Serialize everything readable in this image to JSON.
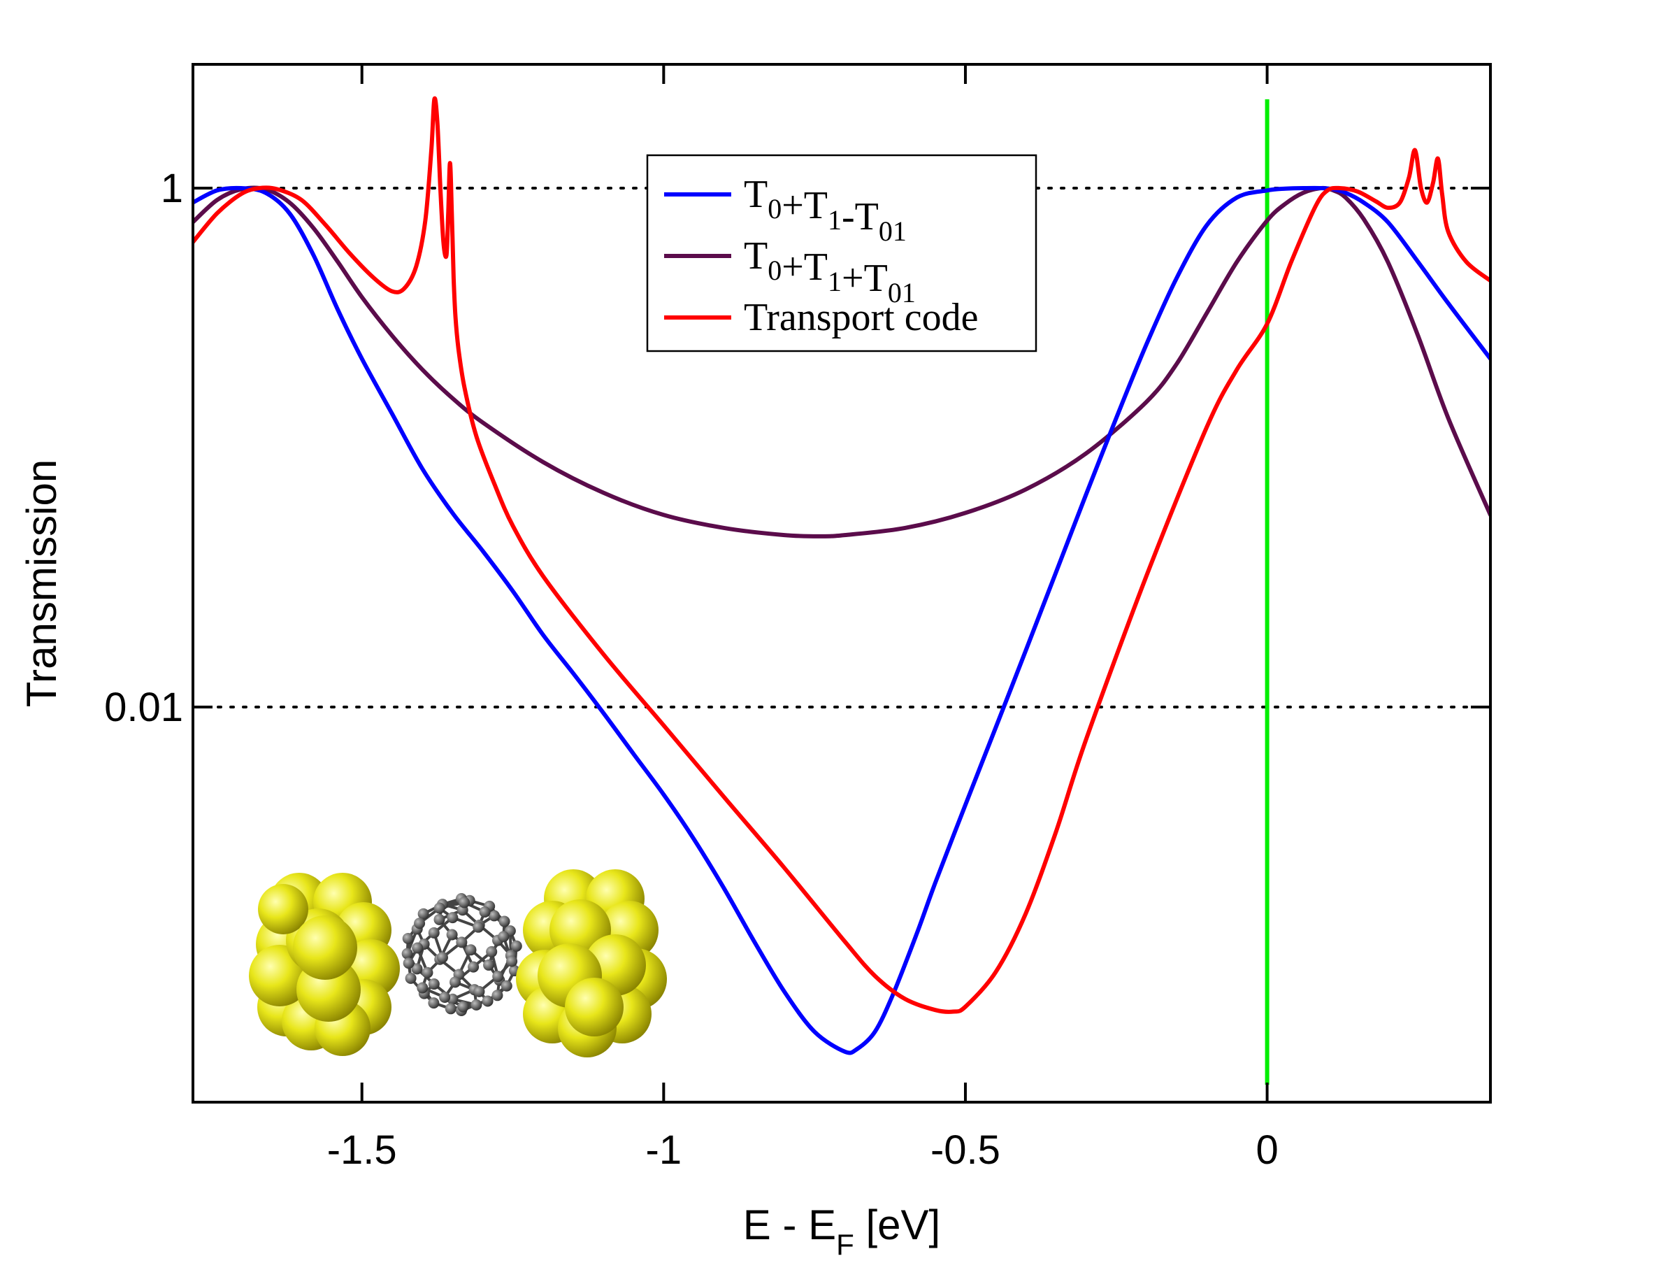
{
  "chart_data": {
    "type": "line",
    "xlabel": "E - E",
    "xlabel_sub": "F",
    "xlabel_unit": " [eV]",
    "ylabel": "Transmission",
    "y_scale": "log",
    "xlim": [
      -1.78,
      0.37
    ],
    "ylim": [
      0.0003,
      3.0
    ],
    "x_ticks": [
      {
        "value": -1.5,
        "label": "-1.5"
      },
      {
        "value": -1.0,
        "label": "-1"
      },
      {
        "value": -0.5,
        "label": "-0.5"
      },
      {
        "value": 0.0,
        "label": "0"
      }
    ],
    "y_ticks": [
      {
        "value": 1.0,
        "label": "1"
      },
      {
        "value": 0.01,
        "label": "0.01"
      }
    ],
    "reference_lines": {
      "horizontal_dotted": [
        1.0,
        0.01
      ],
      "vertical_fermi": {
        "x": 0.0,
        "y_range": [
          0.00035,
          2.2
        ],
        "color": "#00ee00"
      }
    },
    "legend_position": "top-center",
    "series": [
      {
        "name": "T0+T1-T01",
        "legend_parts": [
          [
            "T",
            "0"
          ],
          [
            "+T",
            "1"
          ],
          [
            "-T",
            "01"
          ]
        ],
        "color": "#0000ff",
        "x": [
          -1.78,
          -1.74,
          -1.7,
          -1.66,
          -1.62,
          -1.58,
          -1.54,
          -1.5,
          -1.45,
          -1.4,
          -1.35,
          -1.3,
          -1.25,
          -1.2,
          -1.15,
          -1.1,
          -1.05,
          -1.0,
          -0.95,
          -0.9,
          -0.85,
          -0.8,
          -0.75,
          -0.7,
          -0.68,
          -0.65,
          -0.62,
          -0.58,
          -0.55,
          -0.5,
          -0.45,
          -0.4,
          -0.35,
          -0.3,
          -0.25,
          -0.2,
          -0.15,
          -0.1,
          -0.05,
          0.0,
          0.03,
          0.06,
          0.09,
          0.11,
          0.13,
          0.16,
          0.2,
          0.25,
          0.3,
          0.37
        ],
        "y": [
          0.88,
          0.98,
          1.0,
          0.96,
          0.8,
          0.55,
          0.34,
          0.22,
          0.135,
          0.083,
          0.056,
          0.04,
          0.028,
          0.019,
          0.0135,
          0.0095,
          0.0066,
          0.0046,
          0.0031,
          0.002,
          0.00125,
          0.0008,
          0.00056,
          0.00047,
          0.00048,
          0.00056,
          0.00078,
          0.00135,
          0.0021,
          0.0042,
          0.0083,
          0.0165,
          0.033,
          0.066,
          0.13,
          0.25,
          0.45,
          0.72,
          0.92,
          0.98,
          0.995,
          1.0,
          1.0,
          0.99,
          0.96,
          0.88,
          0.74,
          0.52,
          0.36,
          0.22
        ]
      },
      {
        "name": "T0+T1+T01",
        "legend_parts": [
          [
            "T",
            "0"
          ],
          [
            "+T",
            "1"
          ],
          [
            "+T",
            "01"
          ]
        ],
        "color": "#5b0c4b",
        "x": [
          -1.78,
          -1.74,
          -1.7,
          -1.66,
          -1.62,
          -1.58,
          -1.54,
          -1.5,
          -1.45,
          -1.4,
          -1.35,
          -1.3,
          -1.2,
          -1.1,
          -1.0,
          -0.9,
          -0.8,
          -0.74,
          -0.7,
          -0.6,
          -0.5,
          -0.4,
          -0.3,
          -0.2,
          -0.15,
          -0.1,
          -0.05,
          0.0,
          0.03,
          0.06,
          0.09,
          0.11,
          0.13,
          0.16,
          0.2,
          0.25,
          0.3,
          0.37
        ],
        "y": [
          0.74,
          0.9,
          0.99,
          0.99,
          0.88,
          0.7,
          0.52,
          0.38,
          0.27,
          0.2,
          0.155,
          0.125,
          0.088,
          0.067,
          0.055,
          0.049,
          0.046,
          0.0455,
          0.046,
          0.049,
          0.056,
          0.069,
          0.095,
          0.15,
          0.21,
          0.33,
          0.52,
          0.75,
          0.87,
          0.96,
          1.0,
          0.98,
          0.92,
          0.76,
          0.52,
          0.27,
          0.13,
          0.055
        ]
      },
      {
        "name": "Transport code",
        "legend_parts": [
          [
            "Transport code",
            ""
          ]
        ],
        "color": "#ff0000",
        "x": [
          -1.78,
          -1.74,
          -1.7,
          -1.67,
          -1.64,
          -1.6,
          -1.56,
          -1.52,
          -1.48,
          -1.45,
          -1.43,
          -1.41,
          -1.395,
          -1.385,
          -1.38,
          -1.375,
          -1.37,
          -1.365,
          -1.36,
          -1.357,
          -1.354,
          -1.351,
          -1.348,
          -1.345,
          -1.34,
          -1.33,
          -1.31,
          -1.28,
          -1.25,
          -1.2,
          -1.1,
          -1.0,
          -0.9,
          -0.8,
          -0.7,
          -0.65,
          -0.6,
          -0.55,
          -0.52,
          -0.5,
          -0.45,
          -0.4,
          -0.35,
          -0.3,
          -0.2,
          -0.1,
          -0.05,
          0.0,
          0.04,
          0.08,
          0.1,
          0.12,
          0.15,
          0.18,
          0.2,
          0.22,
          0.235,
          0.245,
          0.255,
          0.265,
          0.275,
          0.283,
          0.29,
          0.3,
          0.33,
          0.37
        ],
        "y": [
          0.62,
          0.8,
          0.95,
          1.0,
          0.99,
          0.9,
          0.72,
          0.56,
          0.45,
          0.4,
          0.41,
          0.5,
          0.75,
          1.4,
          2.2,
          1.8,
          1.0,
          0.62,
          0.55,
          0.8,
          1.25,
          0.8,
          0.45,
          0.32,
          0.24,
          0.17,
          0.11,
          0.072,
          0.05,
          0.032,
          0.016,
          0.0085,
          0.0045,
          0.0024,
          0.00125,
          0.00092,
          0.00075,
          0.00068,
          0.00067,
          0.0007,
          0.00095,
          0.0016,
          0.0033,
          0.0075,
          0.032,
          0.12,
          0.2,
          0.3,
          0.52,
          0.85,
          0.98,
          1.0,
          0.97,
          0.89,
          0.84,
          0.88,
          1.1,
          1.4,
          1.0,
          0.88,
          1.05,
          1.3,
          0.95,
          0.68,
          0.52,
          0.44
        ]
      }
    ],
    "inset_image": "gold-C60-gold molecular junction illustration"
  }
}
